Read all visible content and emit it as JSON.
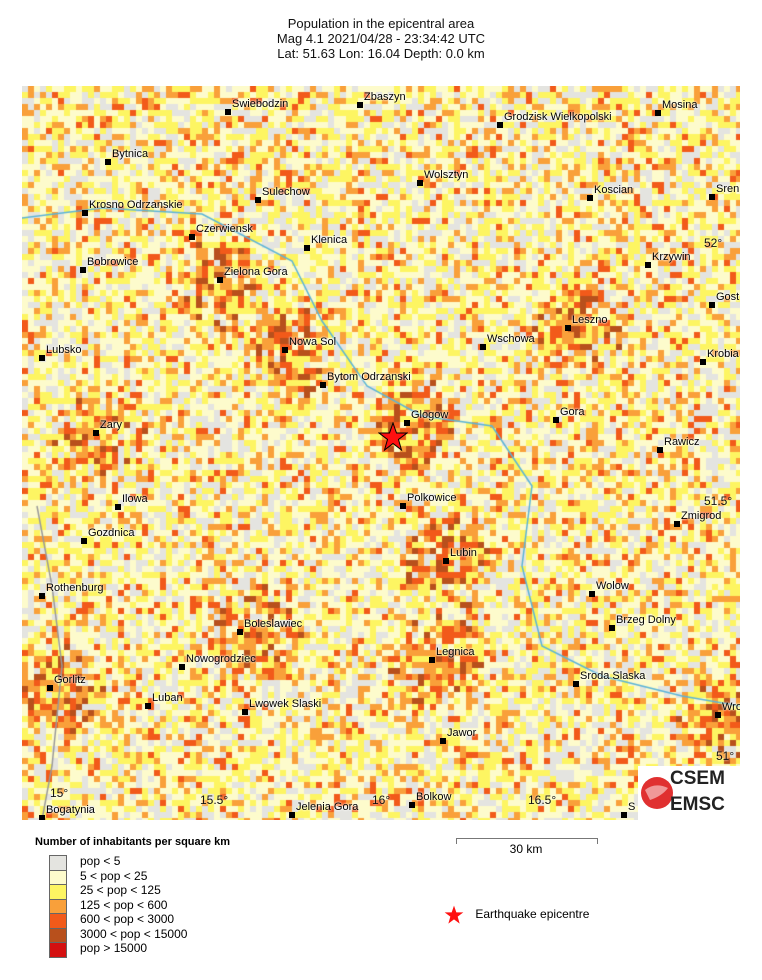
{
  "title": {
    "line1": "Population in the epicentral area",
    "line2": "Mag 4.1  2021/04/28 - 23:34:42 UTC",
    "line3": "Lat: 51.63   Lon: 16.04    Depth:  0.0 km"
  },
  "map": {
    "cities": [
      "Swiebodzin",
      "Zbaszyn",
      "Grodzisk Wielkopolski",
      "Mosina",
      "Bytnica",
      "Wolsztyn",
      "Sulechow",
      "Koscian",
      "Sren",
      "Krosno Odrzanskie",
      "Czerwiensk",
      "Klenica",
      "Krzywin",
      "Bobrowice",
      "Zielona Gora",
      "Gost",
      "Leszno",
      "Nowa Sol",
      "Wschowa",
      "Lubsko",
      "Krobia",
      "Bytom Odrzanski",
      "Glogow",
      "Gora",
      "Zary",
      "Rawicz",
      "Ilowa",
      "Polkowice",
      "Zmigrod",
      "Gozdnica",
      "Lubin",
      "Rothenburg",
      "Wolow",
      "Boleslawiec",
      "Brzeg Dolny",
      "Legnica",
      "Nowogrodziec",
      "Sroda Slaska",
      "Gorlitz",
      "Luban",
      "Lwowek Slaski",
      "Wro",
      "Jawor",
      "Bogatynia",
      "Jelenia Gora",
      "Bolkow",
      "S"
    ],
    "lon_ticks": [
      "15°",
      "15.5°",
      "16°",
      "16.5°"
    ],
    "lat_ticks": [
      "52°",
      "51.5°",
      "51°"
    ],
    "epicentre": {
      "lat": 51.63,
      "lon": 16.04,
      "color": "#ff0000"
    },
    "logo": {
      "top": "CSEM",
      "bottom": "EMSC"
    }
  },
  "legend": {
    "title": "Number of inhabitants per square km",
    "classes": [
      {
        "label": "pop < 5",
        "color": "#e4e4e0"
      },
      {
        "label": "5 < pop < 25",
        "color": "#fdfbcc"
      },
      {
        "label": "25 < pop < 125",
        "color": "#fdf562"
      },
      {
        "label": "125 < pop < 600",
        "color": "#f9a03a"
      },
      {
        "label": "600 < pop < 3000",
        "color": "#f25a1a"
      },
      {
        "label": "3000 < pop < 15000",
        "color": "#b8501c"
      },
      {
        "label": "pop > 15000",
        "color": "#d41010"
      }
    ],
    "scale_label": "30 km",
    "epicentre_label": "Earthquake epicentre"
  }
}
